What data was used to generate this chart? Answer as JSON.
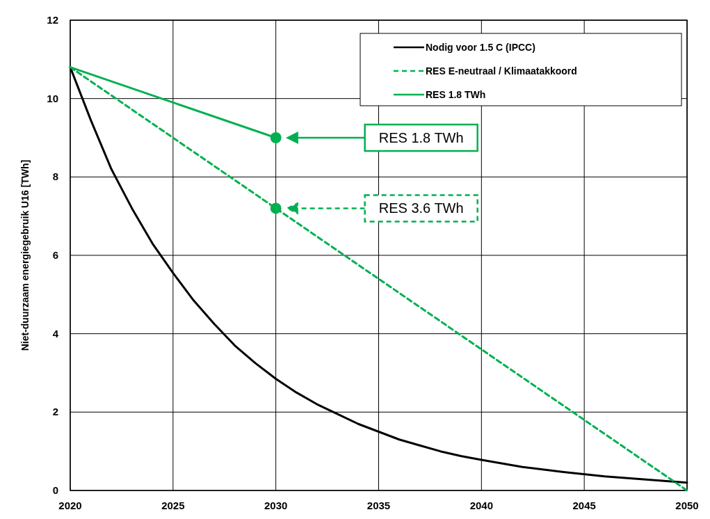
{
  "chart_data": {
    "type": "line",
    "ylabel": "Niet-duurzaam energiegebruik U16 [TWh]",
    "xlim": [
      2020,
      2050
    ],
    "xticks": [
      2020,
      2025,
      2030,
      2035,
      2040,
      2045,
      2050
    ],
    "ylim": [
      0,
      12
    ],
    "yticks": [
      0,
      2,
      4,
      6,
      8,
      10,
      12
    ],
    "grid": true,
    "legend": "top right",
    "marker": "none",
    "series": [
      {
        "name": "Nodig voor 1.5 C (IPCC)",
        "color": "#000000",
        "line_style": "solid",
        "x": [
          2020,
          2021,
          2022,
          2023,
          2024,
          2025,
          2026,
          2027,
          2028,
          2029,
          2030,
          2031,
          2032,
          2033,
          2034,
          2035,
          2036,
          2037,
          2038,
          2039,
          2040,
          2042,
          2044,
          2046,
          2048,
          2050
        ],
        "values": [
          10.8,
          9.45,
          8.2,
          7.2,
          6.3,
          5.55,
          4.85,
          4.25,
          3.7,
          3.25,
          2.85,
          2.5,
          2.2,
          1.95,
          1.7,
          1.5,
          1.3,
          1.15,
          1.0,
          0.88,
          0.78,
          0.6,
          0.47,
          0.36,
          0.28,
          0.2
        ]
      },
      {
        "name": "RES E-neutraal / Klimaatakkoord",
        "color": "#00b050",
        "line_style": "dashed",
        "x": [
          2020,
          2050
        ],
        "values": [
          10.8,
          0
        ]
      },
      {
        "name": "RES 1.8 TWh",
        "color": "#00b050",
        "line_style": "solid",
        "x": [
          2020,
          2030
        ],
        "values": [
          10.8,
          9.0
        ]
      },
      {
        "type": "scatter",
        "color": "#00b050",
        "marker": "circle",
        "x": [
          2030,
          2030
        ],
        "values": [
          9.0,
          7.2
        ]
      }
    ],
    "annotations": [
      "RES 1.8 TWh",
      "RES 3.6 TWh"
    ]
  }
}
